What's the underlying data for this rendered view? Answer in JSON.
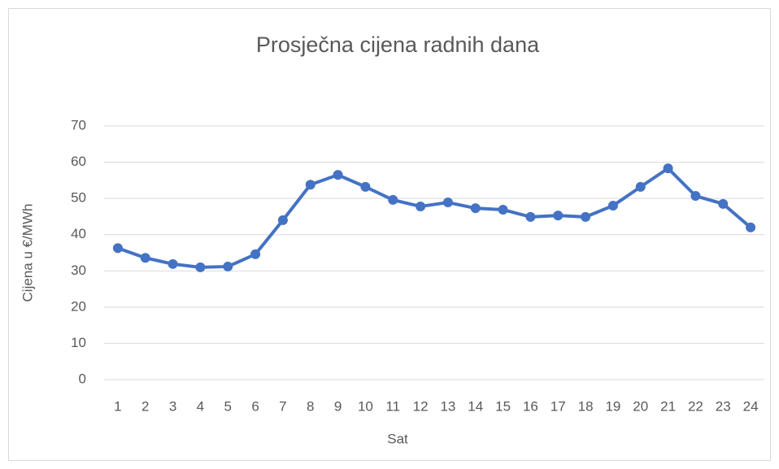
{
  "chart_data": {
    "type": "line",
    "title": "Prosječna cijena radnih dana",
    "xlabel": "Sat",
    "ylabel": "Cijena u €/MWh",
    "categories": [
      "1",
      "2",
      "3",
      "4",
      "5",
      "6",
      "7",
      "8",
      "9",
      "10",
      "11",
      "12",
      "13",
      "14",
      "15",
      "16",
      "17",
      "18",
      "19",
      "20",
      "21",
      "22",
      "23",
      "24"
    ],
    "series": [
      {
        "name": "Cijena",
        "color": "#4472c4",
        "values": [
          36.3,
          33.6,
          31.9,
          31.0,
          31.2,
          34.6,
          44.0,
          53.8,
          56.5,
          53.2,
          49.6,
          47.8,
          48.9,
          47.3,
          46.9,
          44.9,
          45.3,
          44.9,
          48.0,
          53.2,
          58.3,
          50.7,
          48.5,
          42.0
        ]
      }
    ],
    "ylim": [
      0,
      70
    ],
    "yticks": [
      0,
      10,
      20,
      30,
      40,
      50,
      60,
      70
    ],
    "grid": true
  }
}
